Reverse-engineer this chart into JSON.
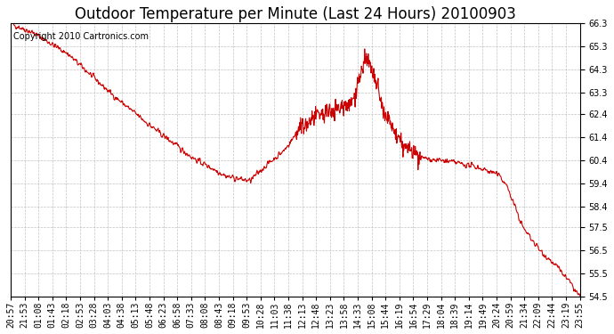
{
  "title": "Outdoor Temperature per Minute (Last 24 Hours) 20100903",
  "copyright_text": "Copyright 2010 Cartronics.com",
  "line_color": "#cc0000",
  "background_color": "#ffffff",
  "grid_color": "#bbbbbb",
  "y_min": 54.5,
  "y_max": 66.3,
  "y_ticks": [
    54.5,
    55.5,
    56.5,
    57.5,
    58.4,
    59.4,
    60.4,
    61.4,
    62.4,
    63.3,
    64.3,
    65.3,
    66.3
  ],
  "x_labels": [
    "20:57",
    "21:53",
    "01:08",
    "01:43",
    "02:18",
    "02:53",
    "03:28",
    "04:03",
    "04:38",
    "05:13",
    "05:48",
    "06:23",
    "06:58",
    "07:33",
    "08:08",
    "08:43",
    "09:18",
    "09:53",
    "10:28",
    "11:03",
    "11:38",
    "12:13",
    "12:48",
    "13:23",
    "13:58",
    "14:33",
    "15:08",
    "15:44",
    "16:19",
    "16:54",
    "17:29",
    "18:04",
    "18:39",
    "19:14",
    "19:49",
    "20:24",
    "20:59",
    "21:34",
    "22:09",
    "22:44",
    "23:19",
    "23:55"
  ],
  "anchors_t": [
    0.0,
    0.04,
    0.1,
    0.18,
    0.25,
    0.32,
    0.38,
    0.42,
    0.45,
    0.48,
    0.51,
    0.54,
    0.57,
    0.6,
    0.625,
    0.635,
    0.645,
    0.655,
    0.67,
    0.69,
    0.72,
    0.75,
    0.78,
    0.82,
    0.855,
    0.87,
    0.9,
    0.93,
    0.96,
    0.98,
    1.0
  ],
  "anchors_v": [
    66.3,
    65.9,
    65.0,
    63.2,
    61.8,
    60.5,
    59.7,
    59.5,
    60.2,
    60.8,
    61.8,
    62.3,
    62.6,
    62.9,
    64.8,
    64.2,
    63.5,
    62.5,
    61.8,
    61.0,
    60.5,
    60.4,
    60.3,
    60.1,
    59.8,
    59.4,
    57.5,
    56.5,
    55.8,
    55.2,
    54.5
  ],
  "n_points": 1440,
  "seed": 42,
  "title_fontsize": 12,
  "copyright_fontsize": 7,
  "tick_fontsize": 7
}
